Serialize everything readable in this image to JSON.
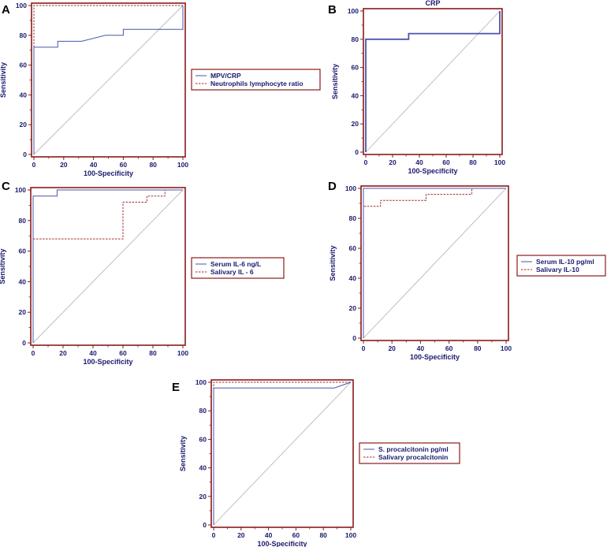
{
  "colors": {
    "frame": "#8b1a1a",
    "axis_text": "#1a1a6e",
    "solid_series": "#4a55a8",
    "dashed_series": "#a52a2a",
    "diagonal": "#b8b8b8",
    "legend_border": "#8b1a1a"
  },
  "chart_data": [
    {
      "panel": "A",
      "type": "line",
      "title": "",
      "xlabel": "100-Specificity",
      "ylabel": "Sensitivity",
      "xlim": [
        0,
        100
      ],
      "ylim": [
        0,
        100
      ],
      "xticks": [
        0,
        20,
        40,
        60,
        80,
        100
      ],
      "yticks": [
        0,
        20,
        40,
        60,
        80,
        100
      ],
      "diagonal": true,
      "legend": "right",
      "series": [
        {
          "name": "MPV/CRP",
          "style": "solid",
          "color": "#4a55a8",
          "x": [
            0,
            0,
            16,
            16,
            32,
            48,
            48,
            60,
            60,
            100,
            100
          ],
          "y": [
            0,
            72,
            72,
            76,
            76,
            80,
            80,
            80,
            84,
            84,
            100
          ]
        },
        {
          "name": "Neutrophils lymphocyte ratio",
          "style": "dashed",
          "color": "#a52a2a",
          "x": [
            0,
            0,
            100
          ],
          "y": [
            0,
            100,
            100
          ]
        }
      ]
    },
    {
      "panel": "B",
      "type": "line",
      "title": "CRP",
      "xlabel": "100-Specificity",
      "ylabel": "Sensitivity",
      "xlim": [
        0,
        100
      ],
      "ylim": [
        0,
        100
      ],
      "xticks": [
        0,
        20,
        40,
        60,
        80,
        100
      ],
      "yticks": [
        0,
        20,
        40,
        60,
        80,
        100
      ],
      "diagonal": true,
      "legend": "none",
      "series": [
        {
          "name": "",
          "style": "solid-bold",
          "color": "#4a55a8",
          "x": [
            0,
            0,
            32,
            32,
            100,
            100
          ],
          "y": [
            0,
            80,
            80,
            84,
            84,
            100
          ]
        }
      ]
    },
    {
      "panel": "C",
      "type": "line",
      "title": "",
      "xlabel": "100-Specificity",
      "ylabel": "Sensitivity",
      "xlim": [
        0,
        100
      ],
      "ylim": [
        0,
        100
      ],
      "xticks": [
        0,
        20,
        40,
        60,
        80,
        100
      ],
      "yticks": [
        0,
        20,
        40,
        60,
        80,
        100
      ],
      "diagonal": true,
      "legend": "right",
      "series": [
        {
          "name": "Serum IL-6 ng/L",
          "style": "solid",
          "color": "#4a55a8",
          "x": [
            0,
            0,
            16,
            16,
            100
          ],
          "y": [
            0,
            96,
            96,
            100,
            100
          ]
        },
        {
          "name": "Salivary IL - 6",
          "style": "dashed",
          "color": "#a52a2a",
          "x": [
            0,
            0,
            60,
            60,
            76,
            76,
            88,
            88,
            100
          ],
          "y": [
            0,
            68,
            68,
            92,
            92,
            96,
            96,
            100,
            100
          ]
        }
      ]
    },
    {
      "panel": "D",
      "type": "line",
      "title": "",
      "xlabel": "100-Specificity",
      "ylabel": "Sensitivity",
      "xlim": [
        0,
        100
      ],
      "ylim": [
        0,
        100
      ],
      "xticks": [
        0,
        20,
        40,
        60,
        80,
        100
      ],
      "yticks": [
        0,
        20,
        40,
        60,
        80,
        100
      ],
      "diagonal": true,
      "legend": "right",
      "series": [
        {
          "name": "Serum IL-10 pg/ml",
          "style": "solid",
          "color": "#4a55a8",
          "x": [
            0,
            0,
            100
          ],
          "y": [
            0,
            100,
            100
          ]
        },
        {
          "name": "Salivary IL-10",
          "style": "dashed",
          "color": "#a52a2a",
          "x": [
            0,
            0,
            12,
            12,
            44,
            44,
            76,
            76,
            100
          ],
          "y": [
            0,
            88,
            88,
            92,
            92,
            96,
            96,
            100,
            100
          ]
        }
      ]
    },
    {
      "panel": "E",
      "type": "line",
      "title": "",
      "xlabel": "100-Specificity",
      "ylabel": "Sensitivity",
      "xlim": [
        0,
        100
      ],
      "ylim": [
        0,
        100
      ],
      "xticks": [
        0,
        20,
        40,
        60,
        80,
        100
      ],
      "yticks": [
        0,
        20,
        40,
        60,
        80,
        100
      ],
      "diagonal": true,
      "legend": "right",
      "series": [
        {
          "name": "S. procalcitonin pg/ml",
          "style": "solid",
          "color": "#4a55a8",
          "x": [
            0,
            0,
            88,
            100
          ],
          "y": [
            0,
            96,
            96,
            100
          ]
        },
        {
          "name": "Salivary procalcitonin",
          "style": "dashed",
          "color": "#a52a2a",
          "x": [
            0,
            0,
            100
          ],
          "y": [
            0,
            100,
            100
          ]
        }
      ]
    }
  ]
}
